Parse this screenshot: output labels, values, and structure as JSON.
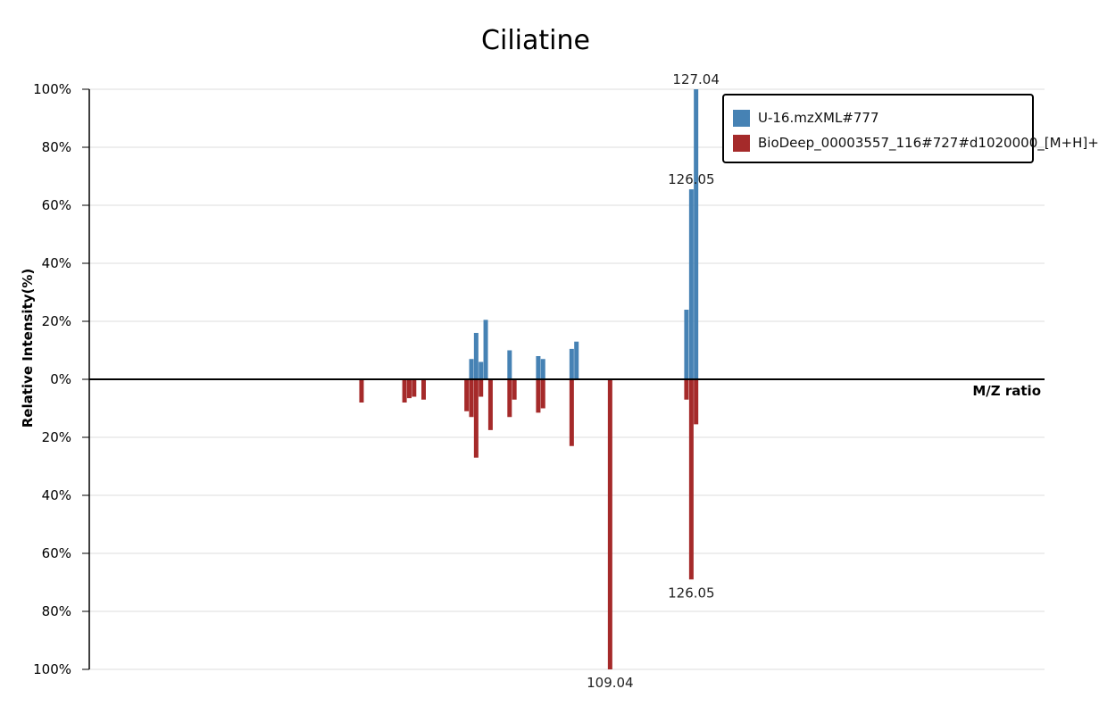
{
  "chart_data": {
    "type": "bar",
    "title": "Ciliatine",
    "xlabel": "M/Z ratio",
    "ylabel": "Relative Intensity(%)",
    "y_ticks_top": [
      "100%",
      "80%",
      "60%",
      "40%",
      "20%",
      "0%"
    ],
    "y_ticks_bottom": [
      "20%",
      "40%",
      "60%",
      "80%",
      "100%"
    ],
    "ylim": [
      -100,
      100
    ],
    "grid": true,
    "legend_position": "top-right",
    "series": [
      {
        "name": "U-16.mzXML#777",
        "color": "#4682b4",
        "direction": "up",
        "peaks": [
          {
            "x": 80.0,
            "y": 7.0
          },
          {
            "x": 81.0,
            "y": 16.0
          },
          {
            "x": 82.0,
            "y": 6.0
          },
          {
            "x": 83.0,
            "y": 20.5
          },
          {
            "x": 88.0,
            "y": 10.0
          },
          {
            "x": 94.0,
            "y": 8.0
          },
          {
            "x": 95.0,
            "y": 7.0
          },
          {
            "x": 101.0,
            "y": 10.5
          },
          {
            "x": 102.0,
            "y": 13.0
          },
          {
            "x": 125.03,
            "y": 24.0
          },
          {
            "x": 126.05,
            "y": 65.5
          },
          {
            "x": 127.04,
            "y": 100.0
          }
        ]
      },
      {
        "name": "BioDeep_00003557_116#727#d1020000_[M+H]+",
        "color": "#a52a2a",
        "direction": "down",
        "peaks": [
          {
            "x": 57.0,
            "y": 8.0
          },
          {
            "x": 66.0,
            "y": 8.0
          },
          {
            "x": 67.0,
            "y": 6.5
          },
          {
            "x": 68.0,
            "y": 6.0
          },
          {
            "x": 70.0,
            "y": 7.0
          },
          {
            "x": 79.0,
            "y": 11.0
          },
          {
            "x": 80.0,
            "y": 13.0
          },
          {
            "x": 81.0,
            "y": 27.0
          },
          {
            "x": 82.0,
            "y": 6.0
          },
          {
            "x": 84.0,
            "y": 17.5
          },
          {
            "x": 88.0,
            "y": 13.0
          },
          {
            "x": 89.0,
            "y": 7.0
          },
          {
            "x": 94.0,
            "y": 11.5
          },
          {
            "x": 95.0,
            "y": 10.0
          },
          {
            "x": 101.0,
            "y": 23.0
          },
          {
            "x": 109.04,
            "y": 100.0
          },
          {
            "x": 125.03,
            "y": 7.0
          },
          {
            "x": 126.05,
            "y": 69.0
          },
          {
            "x": 127.04,
            "y": 15.5
          }
        ]
      }
    ],
    "annotations": [
      {
        "text": "127.04",
        "series": 0,
        "x": 127.04
      },
      {
        "text": "126.05",
        "series": 0,
        "x": 126.05
      },
      {
        "text": "126.05",
        "series": 1,
        "x": 126.05
      },
      {
        "text": "109.04",
        "series": 1,
        "x": 109.04
      }
    ]
  }
}
